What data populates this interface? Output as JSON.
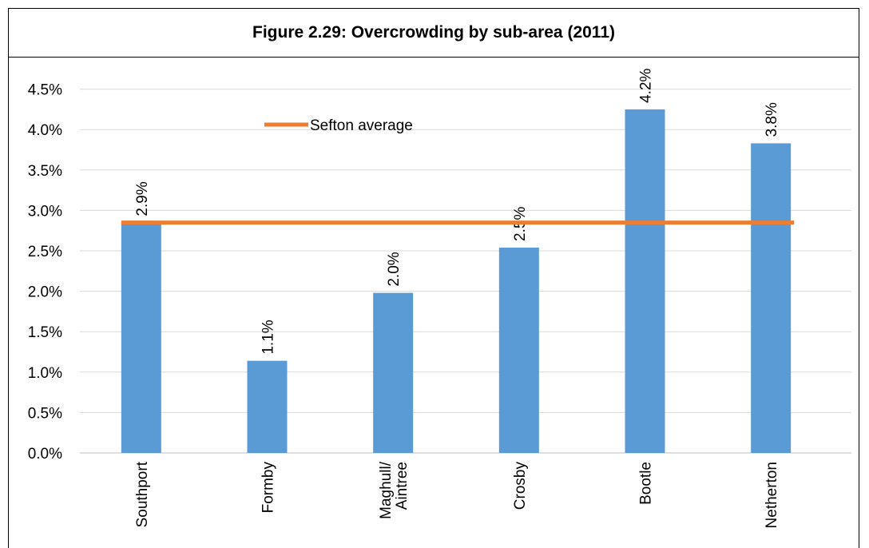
{
  "title": "Figure 2.29: Overcrowding by sub-area (2011)",
  "colors": {
    "bar": "#5b9bd5",
    "average_line": "#ed7d31",
    "grid": "#d9d9d9",
    "axis": "#bfbfbf"
  },
  "chart_data": {
    "type": "bar",
    "title": "Figure 2.29: Overcrowding by sub-area (2011)",
    "categories": [
      [
        "Southport"
      ],
      [
        "Formby"
      ],
      [
        "Maghull/",
        "Aintree"
      ],
      [
        "Crosby"
      ],
      [
        "Bootle"
      ],
      [
        "Netherton"
      ]
    ],
    "values": [
      2.85,
      1.14,
      1.98,
      2.54,
      4.25,
      3.83
    ],
    "data_labels": [
      "2.9%",
      "1.1%",
      "2.0%",
      "2.5%",
      "4.2%",
      "3.8%"
    ],
    "ylim": [
      0,
      0.048
    ],
    "yticks": [
      0.0,
      0.5,
      1.0,
      1.5,
      2.0,
      2.5,
      3.0,
      3.5,
      4.0,
      4.5
    ],
    "ytick_labels": [
      "0.0%",
      "0.5%",
      "1.0%",
      "1.5%",
      "2.0%",
      "2.5%",
      "3.0%",
      "3.5%",
      "4.0%",
      "4.5%"
    ],
    "reference_line": {
      "name": "Sefton average",
      "value": 2.85
    },
    "legend": {
      "entries": [
        "Sefton average"
      ],
      "placement": "top-left"
    },
    "grid": true,
    "xlabel": "",
    "ylabel": ""
  }
}
